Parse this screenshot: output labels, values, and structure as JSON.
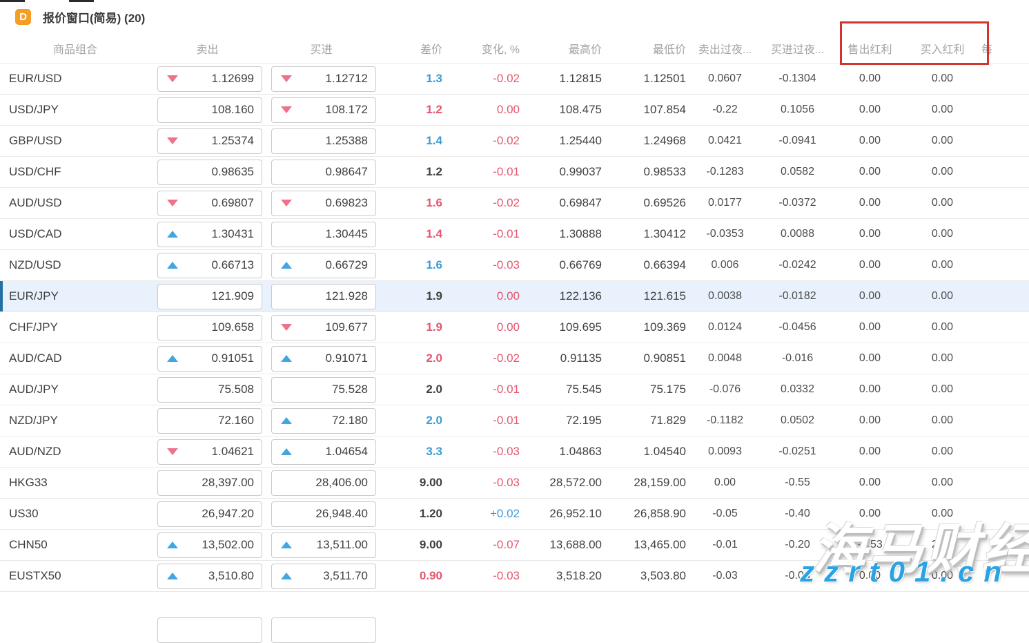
{
  "window": {
    "badge": "D",
    "title": "报价窗口(简易) (20)"
  },
  "ui": {
    "highlight_box_color": "#d2342c",
    "accent_blue": "#3a9bd5",
    "accent_red": "#e4566f",
    "up_arrow_color": "#42a6e0",
    "down_arrow_color": "#f0718a",
    "selected_row_bg": "#e9f2fc"
  },
  "table": {
    "columns": [
      "商品组合",
      "卖出",
      "买进",
      "差价",
      "变化, %",
      "最高价",
      "最低价",
      "卖出过夜...",
      "买进过夜...",
      "售出红利",
      "买入红利",
      "每"
    ],
    "rows": [
      {
        "symbol": "EUR/USD",
        "sell": "1.12699",
        "sell_arrow": "down",
        "buy": "1.12712",
        "buy_arrow": "down",
        "spread": "1.3",
        "spread_color": "blue",
        "change": "-0.02",
        "change_color": "red",
        "high": "1.12815",
        "low": "1.12501",
        "sell_overnight": "0.0607",
        "buy_overnight": "-0.1304",
        "sell_dividend": "0.00",
        "buy_dividend": "0.00",
        "selected": false
      },
      {
        "symbol": "USD/JPY",
        "sell": "108.160",
        "sell_arrow": "none",
        "buy": "108.172",
        "buy_arrow": "down",
        "spread": "1.2",
        "spread_color": "red",
        "change": "0.00",
        "change_color": "red",
        "high": "108.475",
        "low": "107.854",
        "sell_overnight": "-0.22",
        "buy_overnight": "0.1056",
        "sell_dividend": "0.00",
        "buy_dividend": "0.00",
        "selected": false
      },
      {
        "symbol": "GBP/USD",
        "sell": "1.25374",
        "sell_arrow": "down",
        "buy": "1.25388",
        "buy_arrow": "none",
        "spread": "1.4",
        "spread_color": "blue",
        "change": "-0.02",
        "change_color": "red",
        "high": "1.25440",
        "low": "1.24968",
        "sell_overnight": "0.0421",
        "buy_overnight": "-0.0941",
        "sell_dividend": "0.00",
        "buy_dividend": "0.00",
        "selected": false
      },
      {
        "symbol": "USD/CHF",
        "sell": "0.98635",
        "sell_arrow": "none",
        "buy": "0.98647",
        "buy_arrow": "none",
        "spread": "1.2",
        "spread_color": "dark",
        "change": "-0.01",
        "change_color": "red",
        "high": "0.99037",
        "low": "0.98533",
        "sell_overnight": "-0.1283",
        "buy_overnight": "0.0582",
        "sell_dividend": "0.00",
        "buy_dividend": "0.00",
        "selected": false
      },
      {
        "symbol": "AUD/USD",
        "sell": "0.69807",
        "sell_arrow": "down",
        "buy": "0.69823",
        "buy_arrow": "down",
        "spread": "1.6",
        "spread_color": "red",
        "change": "-0.02",
        "change_color": "red",
        "high": "0.69847",
        "low": "0.69526",
        "sell_overnight": "0.0177",
        "buy_overnight": "-0.0372",
        "sell_dividend": "0.00",
        "buy_dividend": "0.00",
        "selected": false
      },
      {
        "symbol": "USD/CAD",
        "sell": "1.30431",
        "sell_arrow": "up",
        "buy": "1.30445",
        "buy_arrow": "none",
        "spread": "1.4",
        "spread_color": "red",
        "change": "-0.01",
        "change_color": "red",
        "high": "1.30888",
        "low": "1.30412",
        "sell_overnight": "-0.0353",
        "buy_overnight": "0.0088",
        "sell_dividend": "0.00",
        "buy_dividend": "0.00",
        "selected": false
      },
      {
        "symbol": "NZD/USD",
        "sell": "0.66713",
        "sell_arrow": "up",
        "buy": "0.66729",
        "buy_arrow": "up",
        "spread": "1.6",
        "spread_color": "blue",
        "change": "-0.03",
        "change_color": "red",
        "high": "0.66769",
        "low": "0.66394",
        "sell_overnight": "0.006",
        "buy_overnight": "-0.0242",
        "sell_dividend": "0.00",
        "buy_dividend": "0.00",
        "selected": false
      },
      {
        "symbol": "EUR/JPY",
        "sell": "121.909",
        "sell_arrow": "none",
        "buy": "121.928",
        "buy_arrow": "none",
        "spread": "1.9",
        "spread_color": "dark",
        "change": "0.00",
        "change_color": "red",
        "high": "122.136",
        "low": "121.615",
        "sell_overnight": "0.0038",
        "buy_overnight": "-0.0182",
        "sell_dividend": "0.00",
        "buy_dividend": "0.00",
        "selected": true
      },
      {
        "symbol": "CHF/JPY",
        "sell": "109.658",
        "sell_arrow": "none",
        "buy": "109.677",
        "buy_arrow": "down",
        "spread": "1.9",
        "spread_color": "red",
        "change": "0.00",
        "change_color": "red",
        "high": "109.695",
        "low": "109.369",
        "sell_overnight": "0.0124",
        "buy_overnight": "-0.0456",
        "sell_dividend": "0.00",
        "buy_dividend": "0.00",
        "selected": false
      },
      {
        "symbol": "AUD/CAD",
        "sell": "0.91051",
        "sell_arrow": "up",
        "buy": "0.91071",
        "buy_arrow": "up",
        "spread": "2.0",
        "spread_color": "red",
        "change": "-0.02",
        "change_color": "red",
        "high": "0.91135",
        "low": "0.90851",
        "sell_overnight": "0.0048",
        "buy_overnight": "-0.016",
        "sell_dividend": "0.00",
        "buy_dividend": "0.00",
        "selected": false
      },
      {
        "symbol": "AUD/JPY",
        "sell": "75.508",
        "sell_arrow": "none",
        "buy": "75.528",
        "buy_arrow": "none",
        "spread": "2.0",
        "spread_color": "dark",
        "change": "-0.01",
        "change_color": "red",
        "high": "75.545",
        "low": "75.175",
        "sell_overnight": "-0.076",
        "buy_overnight": "0.0332",
        "sell_dividend": "0.00",
        "buy_dividend": "0.00",
        "selected": false
      },
      {
        "symbol": "NZD/JPY",
        "sell": "72.160",
        "sell_arrow": "none",
        "buy": "72.180",
        "buy_arrow": "up",
        "spread": "2.0",
        "spread_color": "blue",
        "change": "-0.01",
        "change_color": "red",
        "high": "72.195",
        "low": "71.829",
        "sell_overnight": "-0.1182",
        "buy_overnight": "0.0502",
        "sell_dividend": "0.00",
        "buy_dividend": "0.00",
        "selected": false
      },
      {
        "symbol": "AUD/NZD",
        "sell": "1.04621",
        "sell_arrow": "down",
        "buy": "1.04654",
        "buy_arrow": "up",
        "spread": "3.3",
        "spread_color": "blue",
        "change": "-0.03",
        "change_color": "red",
        "high": "1.04863",
        "low": "1.04540",
        "sell_overnight": "0.0093",
        "buy_overnight": "-0.0251",
        "sell_dividend": "0.00",
        "buy_dividend": "0.00",
        "selected": false
      },
      {
        "symbol": "HKG33",
        "sell": "28,397.00",
        "sell_arrow": "none",
        "buy": "28,406.00",
        "buy_arrow": "none",
        "spread": "9.00",
        "spread_color": "dark",
        "change": "-0.03",
        "change_color": "red",
        "high": "28,572.00",
        "low": "28,159.00",
        "sell_overnight": "0.00",
        "buy_overnight": "-0.55",
        "sell_dividend": "0.00",
        "buy_dividend": "0.00",
        "selected": false
      },
      {
        "symbol": "US30",
        "sell": "26,947.20",
        "sell_arrow": "none",
        "buy": "26,948.40",
        "buy_arrow": "none",
        "spread": "1.20",
        "spread_color": "dark",
        "change": "+0.02",
        "change_color": "blue",
        "high": "26,952.10",
        "low": "26,858.90",
        "sell_overnight": "-0.05",
        "buy_overnight": "-0.40",
        "sell_dividend": "0.00",
        "buy_dividend": "0.00",
        "selected": false
      },
      {
        "symbol": "CHN50",
        "sell": "13,502.00",
        "sell_arrow": "up",
        "buy": "13,511.00",
        "buy_arrow": "up",
        "spread": "9.00",
        "spread_color": "dark",
        "change": "-0.07",
        "change_color": "red",
        "high": "13,688.00",
        "low": "13,465.00",
        "sell_overnight": "-0.01",
        "buy_overnight": "-0.20",
        "sell_dividend": "-3.53",
        "buy_dividend": "2.64",
        "selected": false
      },
      {
        "symbol": "EUSTX50",
        "sell": "3,510.80",
        "sell_arrow": "up",
        "buy": "3,511.70",
        "buy_arrow": "up",
        "spread": "0.90",
        "spread_color": "red",
        "change": "-0.03",
        "change_color": "red",
        "high": "3,518.20",
        "low": "3,503.80",
        "sell_overnight": "-0.03",
        "buy_overnight": "-0.03",
        "sell_dividend": "0.00",
        "buy_dividend": "0.00",
        "selected": false
      }
    ]
  },
  "watermark": {
    "line1": "海马财经",
    "line2": "zzrt01.cn"
  }
}
